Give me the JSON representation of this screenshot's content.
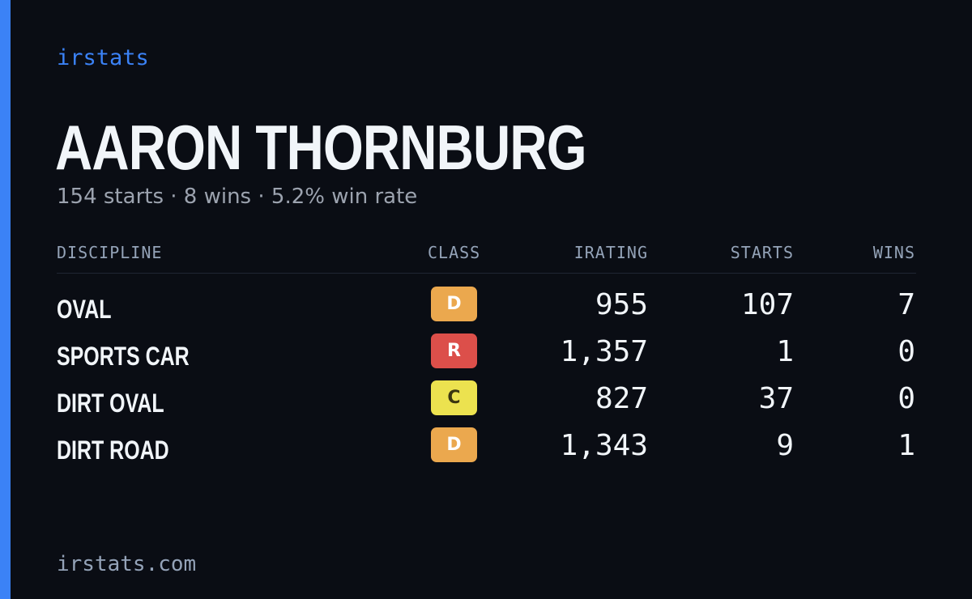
{
  "brand": "irstats",
  "driver": {
    "name": "AARON THORNBURG",
    "summary": "154 starts · 8 wins · 5.2% win rate"
  },
  "table": {
    "headers": {
      "discipline": "DISCIPLINE",
      "class": "CLASS",
      "irating": "IRATING",
      "starts": "STARTS",
      "wins": "WINS"
    },
    "rows": [
      {
        "discipline": "OVAL",
        "class": "D",
        "class_color": "#eba84e",
        "class_text_color": "#ffffff",
        "irating": "955",
        "starts": "107",
        "wins": "7"
      },
      {
        "discipline": "SPORTS CAR",
        "class": "R",
        "class_color": "#dc4f4a",
        "class_text_color": "#ffffff",
        "irating": "1,357",
        "starts": "1",
        "wins": "0"
      },
      {
        "discipline": "DIRT OVAL",
        "class": "C",
        "class_color": "#ece24f",
        "class_text_color": "#3a3510",
        "irating": "827",
        "starts": "37",
        "wins": "0"
      },
      {
        "discipline": "DIRT ROAD",
        "class": "D",
        "class_color": "#eba84e",
        "class_text_color": "#ffffff",
        "irating": "1,343",
        "starts": "9",
        "wins": "1"
      }
    ]
  },
  "footer": "irstats.com",
  "colors": {
    "accent": "#3b82f6",
    "background": "#0a0d14"
  }
}
